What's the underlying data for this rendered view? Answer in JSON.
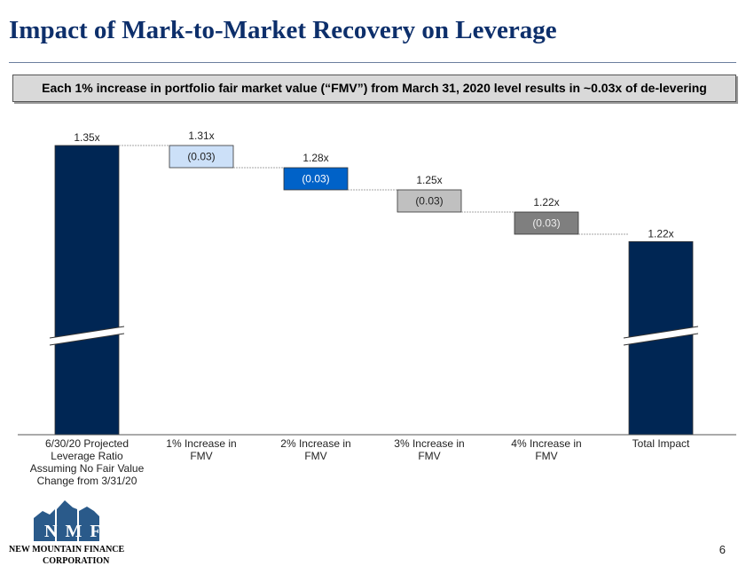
{
  "header": {
    "title": "Impact of Mark-to-Market Recovery on Leverage"
  },
  "callout": "Each 1% increase in portfolio fair market value (“FMV”) from March 31, 2020 level results in ~0.03x of de-levering",
  "chart_data": {
    "type": "waterfall",
    "categories": [
      "6/30/20 Projected Leverage Ratio Assuming No Fair Value Change from 3/31/20",
      "1% Increase in FMV",
      "2% Increase in FMV",
      "3% Increase in FMV",
      "4% Increase in FMV",
      "Total Impact"
    ],
    "values": [
      1.35,
      -0.03,
      -0.03,
      -0.03,
      -0.03,
      1.22
    ],
    "totals_labels": [
      "1.35x",
      "1.31x",
      "1.28x",
      "1.25x",
      "1.22x",
      "1.22x"
    ],
    "delta_labels": [
      "",
      "(0.03)",
      "(0.03)",
      "(0.03)",
      "(0.03)",
      ""
    ],
    "running_values": [
      1.35,
      1.31,
      1.28,
      1.25,
      1.22,
      1.22
    ],
    "colors": [
      "#002654",
      "#cce0f8",
      "#0062c8",
      "#c0c0c0",
      "#7f7f7f",
      "#002654"
    ],
    "axis_break": true
  },
  "logo": {
    "letters": "NMF",
    "name1": "New Mountain Finance",
    "name2": "Corporation"
  },
  "page_number": "6"
}
